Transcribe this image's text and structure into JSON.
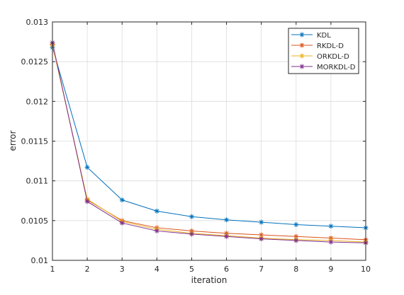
{
  "chart_data": {
    "type": "line",
    "xlabel": "iteration",
    "ylabel": "error",
    "xlim": [
      1,
      10
    ],
    "ylim": [
      0.01,
      0.013
    ],
    "grid": true,
    "legend_position": "top-right",
    "x": [
      1,
      2,
      3,
      4,
      5,
      6,
      7,
      8,
      9,
      10
    ],
    "x_ticks": [
      "1",
      "2",
      "3",
      "4",
      "5",
      "6",
      "7",
      "8",
      "9",
      "10"
    ],
    "y_ticks": [
      "0.01",
      "0.0105",
      "0.011",
      "0.0115",
      "0.012",
      "0.0125",
      "0.013"
    ],
    "series": [
      {
        "name": "KDL",
        "color": "#0072bd",
        "marker": "asterisk",
        "values": [
          0.01268,
          0.01117,
          0.01076,
          0.01062,
          0.01055,
          0.01051,
          0.01048,
          0.01045,
          0.01043,
          0.01041
        ]
      },
      {
        "name": "RKDL-D",
        "color": "#d95319",
        "marker": "asterisk",
        "values": [
          0.01272,
          0.01076,
          0.0105,
          0.01041,
          0.01037,
          0.01034,
          0.01032,
          0.0103,
          0.01028,
          0.01026
        ]
      },
      {
        "name": "ORKDL-D",
        "color": "#edb120",
        "marker": "asterisk",
        "values": [
          0.01271,
          0.01077,
          0.01049,
          0.01039,
          0.01034,
          0.01031,
          0.01028,
          0.01026,
          0.01025,
          0.01023
        ]
      },
      {
        "name": "MORKDL-D",
        "color": "#7e2f8e",
        "marker": "asterisk",
        "values": [
          0.01274,
          0.01074,
          0.01047,
          0.01037,
          0.01033,
          0.0103,
          0.01027,
          0.01025,
          0.01023,
          0.01022
        ]
      }
    ]
  }
}
